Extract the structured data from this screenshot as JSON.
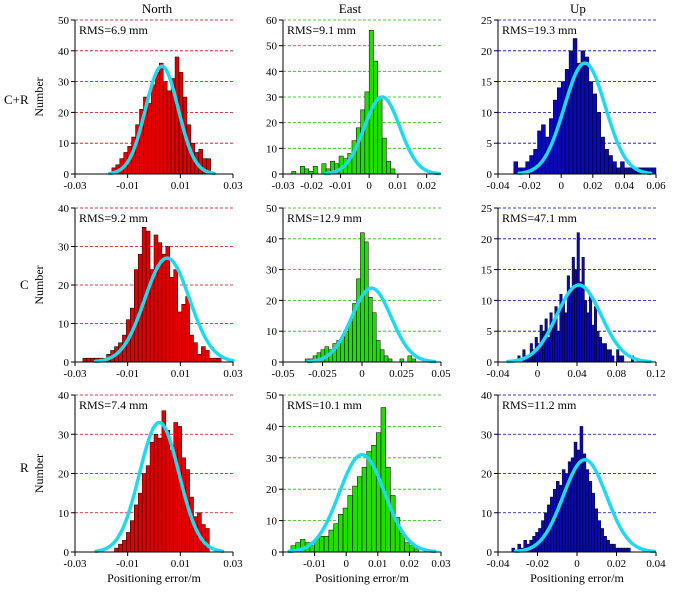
{
  "column_titles": [
    "North",
    "East",
    "Up"
  ],
  "row_labels": [
    "C+R",
    "C",
    "R"
  ],
  "colors": {
    "North": "#e00000",
    "East": "#22dd00",
    "Up": "#0a0ab4",
    "fit": "#22d8ee",
    "grid_north": "#d00000",
    "grid_east": "#22bb00",
    "grid_up": "#0000c0",
    "bar_stroke": "#000000"
  },
  "chart_data": [
    {
      "type": "bar",
      "id": "cr-north",
      "row": 0,
      "col": 0,
      "title": "North",
      "ylabel": "Number",
      "xlabel": "",
      "rms_label": "RMS=6.9 mm",
      "xlim": [
        -0.03,
        0.03
      ],
      "ylim": [
        0,
        50
      ],
      "xticks": [
        -0.03,
        -0.01,
        0.01,
        0.03
      ],
      "xtick_labels": [
        "-0.03",
        "-0.01",
        "0.01",
        "0.03"
      ],
      "yticks": [
        0,
        10,
        20,
        30,
        40,
        50
      ],
      "ytick_labels": [
        "0",
        "10",
        "20",
        "30",
        "40",
        "50"
      ],
      "bins": {
        "start": -0.016,
        "width": 0.0015
      },
      "values": [
        2,
        3,
        5,
        7,
        9,
        12,
        16,
        21,
        25,
        23,
        29,
        33,
        36,
        30,
        27,
        31,
        38,
        33,
        25,
        16,
        10,
        7,
        8,
        5,
        5
      ],
      "fit": {
        "mean": 0.003,
        "sigma": 0.0062,
        "peak": 35
      }
    },
    {
      "type": "bar",
      "id": "cr-east",
      "row": 0,
      "col": 1,
      "title": "East",
      "ylabel": "",
      "xlabel": "",
      "rms_label": "RMS=9.1 mm",
      "xlim": [
        -0.03,
        0.025
      ],
      "ylim": [
        0,
        60
      ],
      "xticks": [
        -0.03,
        -0.02,
        -0.01,
        0,
        0.01,
        0.02
      ],
      "xtick_labels": [
        "-0.03",
        "-0.02",
        "-0.01",
        "0",
        "0.01",
        "0.02"
      ],
      "yticks": [
        0,
        10,
        20,
        30,
        40,
        50,
        60
      ],
      "ytick_labels": [
        "0",
        "10",
        "20",
        "30",
        "40",
        "50",
        "60"
      ],
      "bins": {
        "start": -0.027,
        "width": 0.0015
      },
      "values": [
        1,
        0,
        3,
        2,
        1,
        3,
        0,
        4,
        2,
        5,
        4,
        7,
        6,
        8,
        13,
        18,
        25,
        32,
        56,
        44,
        30,
        14,
        5,
        2
      ],
      "fit": {
        "mean": 0.0045,
        "sigma": 0.0062,
        "peak": 30
      }
    },
    {
      "type": "bar",
      "id": "cr-up",
      "row": 0,
      "col": 2,
      "title": "Up",
      "ylabel": "",
      "xlabel": "",
      "rms_label": "RMS=19.3 mm",
      "xlim": [
        -0.04,
        0.06
      ],
      "ylim": [
        0,
        25
      ],
      "xticks": [
        -0.04,
        -0.02,
        0,
        0.02,
        0.04,
        0.06
      ],
      "xtick_labels": [
        "-0.04",
        "-0.02",
        "0",
        "0.02",
        "0.04",
        "0.06"
      ],
      "yticks": [
        0,
        5,
        10,
        15,
        20,
        25
      ],
      "ytick_labels": [
        "0",
        "5",
        "10",
        "15",
        "20",
        "25"
      ],
      "bins": {
        "start": -0.03,
        "width": 0.0025
      },
      "values": [
        2,
        1,
        1,
        2,
        3,
        4,
        7,
        8,
        6,
        9,
        12,
        14,
        15,
        17,
        20,
        22,
        18,
        20,
        19,
        15,
        13,
        10,
        6,
        4,
        3,
        2,
        1,
        2,
        1,
        1,
        1,
        1,
        1,
        1,
        1,
        1
      ],
      "fit": {
        "mean": 0.015,
        "sigma": 0.013,
        "peak": 18
      }
    },
    {
      "type": "bar",
      "id": "c-north",
      "row": 1,
      "col": 0,
      "title": "",
      "ylabel": "Number",
      "xlabel": "",
      "rms_label": "RMS=9.2 mm",
      "xlim": [
        -0.03,
        0.03
      ],
      "ylim": [
        0,
        40
      ],
      "xticks": [
        -0.03,
        -0.01,
        0.01,
        0.03
      ],
      "xtick_labels": [
        "-0.03",
        "-0.01",
        "0.01",
        "0.03"
      ],
      "yticks": [
        0,
        10,
        20,
        30,
        40
      ],
      "ytick_labels": [
        "0",
        "10",
        "20",
        "30",
        "40"
      ],
      "bins": {
        "start": -0.027,
        "width": 0.0015
      },
      "values": [
        1,
        1,
        1,
        1,
        1,
        1,
        2,
        3,
        4,
        5,
        7,
        11,
        14,
        24,
        28,
        35,
        34,
        24,
        33,
        31,
        28,
        30,
        22,
        24,
        13,
        15,
        17,
        7,
        5,
        2,
        4,
        3,
        1,
        1,
        1
      ],
      "fit": {
        "mean": 0.005,
        "sigma": 0.0085,
        "peak": 27
      }
    },
    {
      "type": "bar",
      "id": "c-east",
      "row": 1,
      "col": 1,
      "title": "",
      "ylabel": "",
      "xlabel": "",
      "rms_label": "RMS=12.9 mm",
      "xlim": [
        -0.05,
        0.05
      ],
      "ylim": [
        0,
        50
      ],
      "xticks": [
        -0.05,
        -0.025,
        0,
        0.025,
        0.05
      ],
      "xtick_labels": [
        "-0.05",
        "-0.025",
        "0",
        "0.025",
        "0.05"
      ],
      "yticks": [
        0,
        10,
        20,
        30,
        40,
        50
      ],
      "ytick_labels": [
        "0",
        "10",
        "20",
        "30",
        "40",
        "50"
      ],
      "bins": {
        "start": -0.036,
        "width": 0.0025
      },
      "values": [
        1,
        1,
        2,
        3,
        4,
        5,
        4,
        6,
        7,
        8,
        10,
        13,
        19,
        27,
        42,
        39,
        21,
        16,
        7,
        4,
        2,
        1,
        0,
        0,
        1,
        0,
        2,
        1
      ],
      "fit": {
        "mean": 0.006,
        "sigma": 0.0125,
        "peak": 24
      }
    },
    {
      "type": "bar",
      "id": "c-up",
      "row": 1,
      "col": 2,
      "title": "",
      "ylabel": "",
      "xlabel": "",
      "rms_label": "RMS=47.1 mm",
      "xlim": [
        -0.04,
        0.12
      ],
      "ylim": [
        0,
        25
      ],
      "xticks": [
        -0.04,
        0,
        0.04,
        0.08,
        0.12
      ],
      "xtick_labels": [
        "-0.04",
        "0",
        "0.04",
        "0.08",
        "0.12"
      ],
      "yticks": [
        0,
        5,
        10,
        15,
        20,
        25
      ],
      "ytick_labels": [
        "0",
        "5",
        "10",
        "15",
        "20",
        "25"
      ],
      "bins": {
        "start": -0.02,
        "width": 0.0025
      },
      "values": [
        1,
        0,
        2,
        1,
        1,
        3,
        2,
        4,
        3,
        6,
        5,
        7,
        4,
        8,
        6,
        9,
        5,
        11,
        10,
        8,
        14,
        12,
        17,
        15,
        21,
        13,
        17,
        10,
        8,
        11,
        6,
        9,
        5,
        4,
        3,
        3,
        2,
        2,
        1,
        0,
        2,
        1,
        1,
        0,
        0,
        0,
        1
      ],
      "fit": {
        "mean": 0.042,
        "sigma": 0.0225,
        "peak": 12.5
      }
    },
    {
      "type": "bar",
      "id": "r-north",
      "row": 2,
      "col": 0,
      "title": "",
      "ylabel": "Number",
      "xlabel": "Positioning error/m",
      "rms_label": "RMS=7.4 mm",
      "xlim": [
        -0.03,
        0.03
      ],
      "ylim": [
        0,
        40
      ],
      "xticks": [
        -0.03,
        -0.01,
        0.01,
        0.03
      ],
      "xtick_labels": [
        "-0.03",
        "-0.01",
        "0.01",
        "0.03"
      ],
      "yticks": [
        0,
        10,
        20,
        30,
        40
      ],
      "ytick_labels": [
        "0",
        "10",
        "20",
        "30",
        "40"
      ],
      "bins": {
        "start": -0.015,
        "width": 0.0015
      },
      "values": [
        1,
        2,
        3,
        5,
        8,
        12,
        15,
        20,
        22,
        28,
        30,
        29,
        36,
        31,
        26,
        33,
        32,
        24,
        21,
        14,
        9,
        10,
        7,
        6
      ],
      "fit": {
        "mean": 0.002,
        "sigma": 0.0075,
        "peak": 33
      }
    },
    {
      "type": "bar",
      "id": "r-east",
      "row": 2,
      "col": 1,
      "title": "",
      "ylabel": "",
      "xlabel": "Positioning error/m",
      "rms_label": "RMS=10.1 mm",
      "xlim": [
        -0.02,
        0.03
      ],
      "ylim": [
        0,
        50
      ],
      "xticks": [
        -0.02,
        -0.01,
        0,
        0.01,
        0.02,
        0.03
      ],
      "xtick_labels": [
        "",
        "-0.01",
        "0",
        "0.01",
        "0.02",
        "0.03"
      ],
      "yticks": [
        0,
        10,
        20,
        30,
        40,
        50
      ],
      "ytick_labels": [
        "0",
        "10",
        "20",
        "30",
        "40",
        "50"
      ],
      "bins": {
        "start": -0.0175,
        "width": 0.0015
      },
      "values": [
        2,
        3,
        4,
        3,
        2,
        4,
        5,
        5,
        7,
        9,
        12,
        14,
        18,
        21,
        24,
        27,
        32,
        34,
        38,
        46,
        27,
        18,
        11,
        6,
        3,
        2,
        1
      ],
      "fit": {
        "mean": 0.005,
        "sigma": 0.0072,
        "peak": 31
      }
    },
    {
      "type": "bar",
      "id": "r-up",
      "row": 2,
      "col": 2,
      "title": "",
      "ylabel": "",
      "xlabel": "Positioning error/m",
      "rms_label": "RMS=11.2 mm",
      "xlim": [
        -0.04,
        0.04
      ],
      "ylim": [
        0,
        40
      ],
      "xticks": [
        -0.04,
        -0.02,
        0,
        0.02,
        0.04
      ],
      "xtick_labels": [
        "-0.04",
        "-0.02",
        "0",
        "0.02",
        "0.04"
      ],
      "yticks": [
        0,
        10,
        20,
        30,
        40
      ],
      "ytick_labels": [
        "0",
        "10",
        "20",
        "30",
        "40"
      ],
      "bins": {
        "start": -0.033,
        "width": 0.0015
      },
      "values": [
        1,
        0,
        2,
        1,
        3,
        2,
        3,
        4,
        5,
        6,
        8,
        10,
        12,
        14,
        16,
        18,
        17,
        21,
        20,
        23,
        24,
        28,
        26,
        32,
        25,
        21,
        18,
        15,
        11,
        8,
        6,
        4,
        3,
        2,
        2,
        1,
        1,
        1,
        1,
        1
      ],
      "fit": {
        "mean": 0.004,
        "sigma": 0.011,
        "peak": 23.5
      }
    }
  ]
}
